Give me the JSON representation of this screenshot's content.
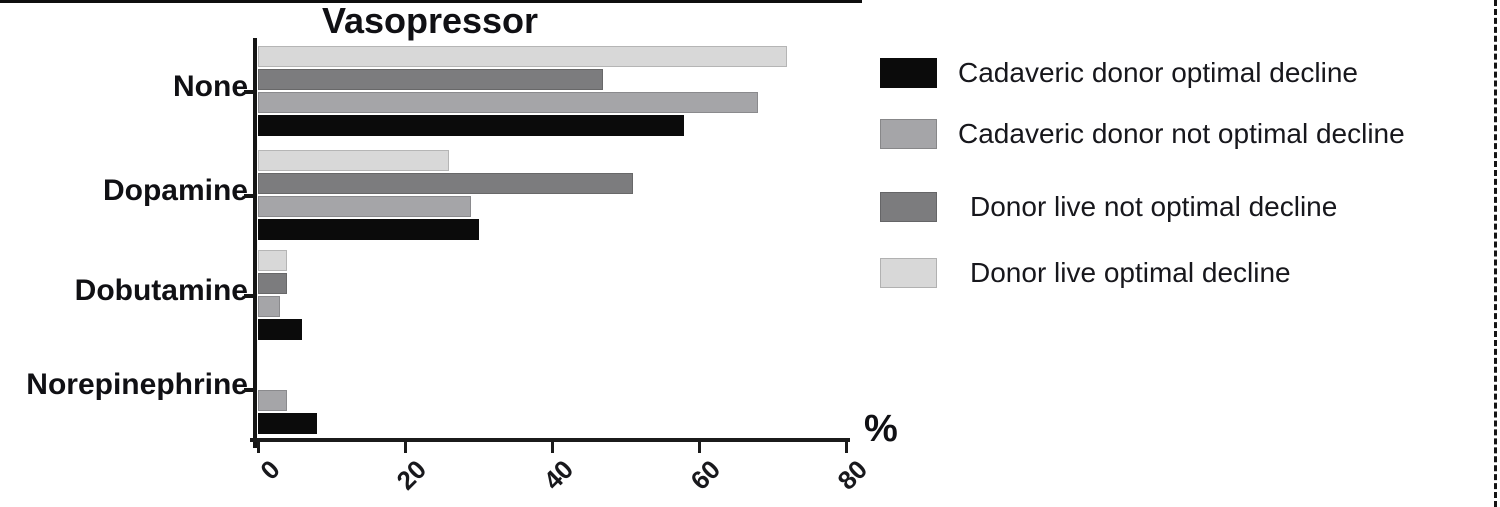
{
  "chart_data": {
    "type": "bar",
    "orientation": "horizontal",
    "title": "Vasopressor",
    "xlabel": "%",
    "xlim": [
      0,
      80
    ],
    "x_ticks": [
      "0",
      "20",
      "40",
      "60",
      "80"
    ],
    "x_tick_values": [
      0,
      20,
      40,
      60,
      80
    ],
    "categories": [
      "None",
      "Dopamine",
      "Dobutamine",
      "Norepinephrine"
    ],
    "series": [
      {
        "name": "Cadaveric donor optimal decline",
        "color": "#0b0b0b",
        "values": [
          58,
          30,
          6,
          8
        ]
      },
      {
        "name": "Cadaveric donor not optimal decline",
        "color": "#a5a5a8",
        "values": [
          68,
          29,
          3,
          4
        ]
      },
      {
        "name": "Donor live not optimal decline",
        "color": "#7c7c7e",
        "values": [
          47,
          51,
          4,
          0
        ]
      },
      {
        "name": "Donor live optimal decline",
        "color": "#d8d8d8",
        "values": [
          72,
          26,
          4,
          0
        ]
      }
    ],
    "bar_row_order_top_to_bottom": [
      3,
      2,
      1,
      0
    ],
    "legend_position": "right",
    "grid": false
  }
}
